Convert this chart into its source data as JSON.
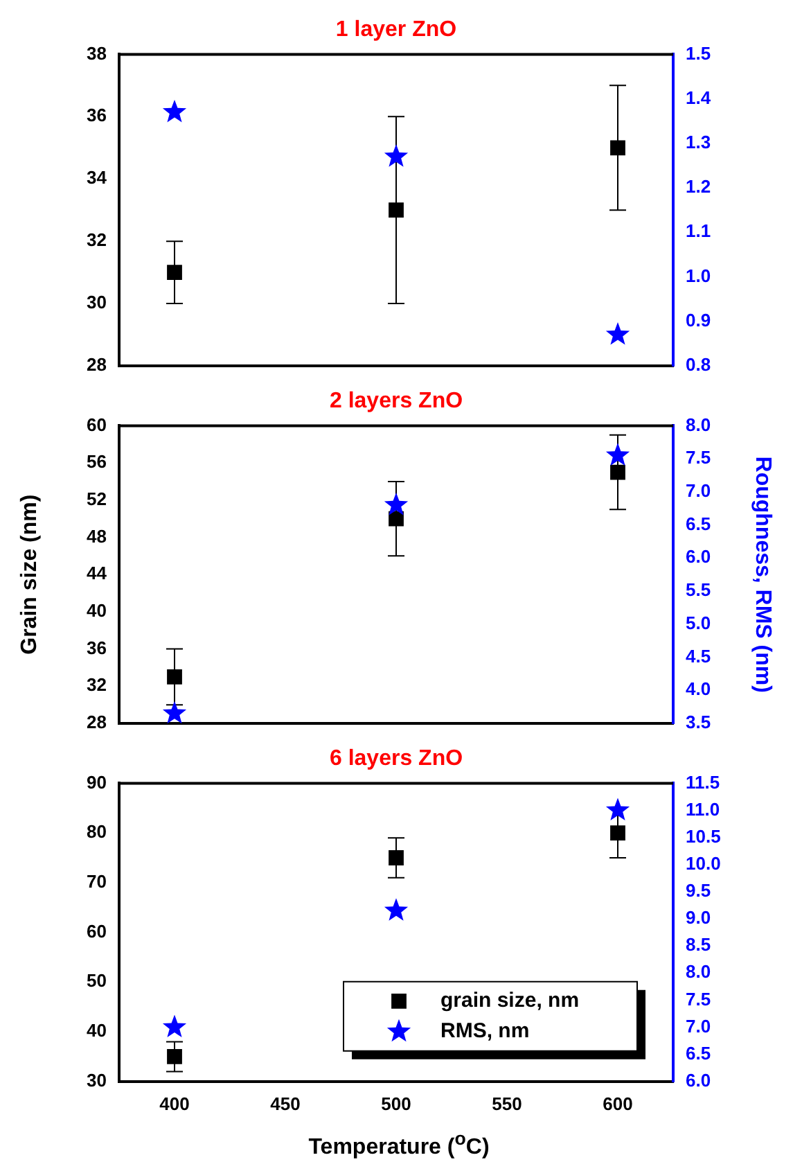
{
  "chart_data": [
    {
      "type": "scatter",
      "title": "1 layer ZnO",
      "x": [
        400,
        500,
        600
      ],
      "xlim": [
        375,
        625
      ],
      "xticks": [
        400,
        450,
        500,
        550,
        600
      ],
      "ylim": [
        28,
        38
      ],
      "yticks": [
        28,
        30,
        32,
        34,
        36,
        38
      ],
      "y2lim": [
        0.8,
        1.5
      ],
      "y2ticks": [
        {
          "value": 0.8,
          "label": "0.8"
        },
        0.9,
        {
          "value": 1.0,
          "label": "1.0"
        },
        1.1,
        1.2,
        1.3,
        1.4,
        1.5
      ],
      "tick_labels": "y",
      "grid": false,
      "series": [
        {
          "color": "#000000",
          "marker": "square",
          "values": [
            31,
            33,
            35
          ],
          "errors": [
            1,
            3,
            2
          ]
        },
        {
          "color": "#0000ff",
          "marker": "star",
          "axis": "y2",
          "values": [
            1.37,
            1.27,
            0.87
          ]
        }
      ]
    },
    {
      "type": "scatter",
      "title": "2 layers ZnO",
      "ylabel": "Grain size (nm)",
      "y2label": "Roughness, RMS (nm)",
      "x": [
        400,
        500,
        600
      ],
      "xlim": [
        375,
        625
      ],
      "xticks": [
        400,
        450,
        500,
        550,
        600
      ],
      "ylim": [
        28,
        60
      ],
      "yticks": [
        28,
        32,
        36,
        40,
        44,
        48,
        52,
        56,
        60
      ],
      "y2lim": [
        3.5,
        8.0
      ],
      "y2ticks": [
        3.5,
        {
          "value": 4.0,
          "label": "4.0"
        },
        4.5,
        {
          "value": 5.0,
          "label": "5.0"
        },
        5.5,
        {
          "value": 6.0,
          "label": "6.0"
        },
        6.5,
        {
          "value": 7.0,
          "label": "7.0"
        },
        7.5,
        {
          "value": 8.0,
          "label": "8.0"
        }
      ],
      "tick_labels": "y",
      "grid": false,
      "series": [
        {
          "color": "#000000",
          "marker": "square",
          "values": [
            33,
            50,
            55
          ],
          "errors": [
            3,
            4,
            4
          ]
        },
        {
          "color": "#0000ff",
          "marker": "star",
          "axis": "y2",
          "values": [
            3.65,
            6.8,
            7.55
          ]
        }
      ]
    },
    {
      "type": "scatter",
      "title": "6 layers ZnO",
      "xlabel": "Temperature ($^{o}$C)",
      "x": [
        400,
        500,
        600
      ],
      "xlim": [
        375,
        625
      ],
      "xticks": [
        400,
        450,
        500,
        550,
        600
      ],
      "ylim": [
        30,
        90
      ],
      "yticks": [
        30,
        40,
        50,
        60,
        70,
        80,
        90
      ],
      "y2lim": [
        6.0,
        11.5
      ],
      "y2ticks": [
        {
          "value": 6.0,
          "label": "6.0"
        },
        6.5,
        {
          "value": 7.0,
          "label": "7.0"
        },
        7.5,
        {
          "value": 8.0,
          "label": "8.0"
        },
        8.5,
        {
          "value": 9.0,
          "label": "9.0"
        },
        9.5,
        {
          "value": 10.0,
          "label": "10.0"
        },
        10.5,
        {
          "value": 11.0,
          "label": "11.0"
        },
        11.5
      ],
      "grid": false,
      "legend": "bottom right",
      "series": [
        {
          "name": "grain size, nm",
          "color": "#000000",
          "marker": "square",
          "values": [
            35,
            75,
            80
          ],
          "errors": [
            3,
            4,
            5
          ]
        },
        {
          "name": "RMS, nm",
          "color": "#0000ff",
          "marker": "star",
          "axis": "y2",
          "values": [
            7.0,
            9.15,
            11.0
          ]
        }
      ]
    }
  ]
}
